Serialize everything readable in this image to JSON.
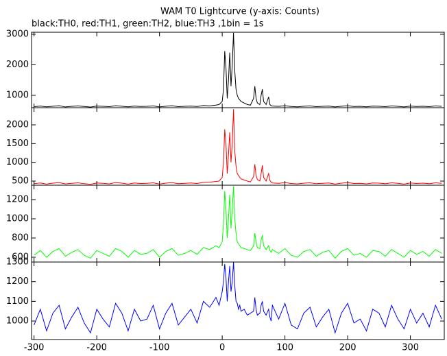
{
  "chart_data": [
    {
      "type": "line",
      "title": "WAM T0 Lightcurve (y-axis: Counts)",
      "subtitle": "black:TH0, red:TH1, green:TH2, blue:TH3 ,1bin = 1s",
      "x": [
        -300,
        -290,
        -280,
        -270,
        -260,
        -250,
        -240,
        -230,
        -220,
        -210,
        -200,
        -190,
        -180,
        -170,
        -160,
        -150,
        -140,
        -130,
        -120,
        -110,
        -100,
        -90,
        -80,
        -70,
        -60,
        -50,
        -40,
        -30,
        -20,
        -10,
        -5,
        0,
        2,
        4,
        6,
        8,
        10,
        12,
        14,
        16,
        18,
        20,
        22,
        24,
        26,
        28,
        30,
        35,
        40,
        45,
        50,
        52,
        54,
        56,
        60,
        62,
        64,
        66,
        70,
        74,
        76,
        78,
        80,
        90,
        100,
        110,
        120,
        130,
        140,
        150,
        160,
        170,
        180,
        190,
        200,
        210,
        220,
        230,
        240,
        250,
        260,
        270,
        280,
        290,
        300,
        310,
        320,
        330,
        340,
        350
      ],
      "series": [
        {
          "color": "#000000",
          "values": [
            630,
            650,
            625,
            645,
            660,
            620,
            640,
            655,
            635,
            615,
            650,
            640,
            630,
            660,
            645,
            625,
            650,
            635,
            640,
            655,
            620,
            645,
            660,
            630,
            640,
            650,
            635,
            665,
            655,
            680,
            700,
            800,
            1200,
            2450,
            1900,
            900,
            1500,
            2400,
            1300,
            2000,
            3050,
            1800,
            1200,
            1000,
            900,
            850,
            800,
            750,
            700,
            680,
            900,
            1300,
            900,
            750,
            700,
            1000,
            1200,
            800,
            700,
            950,
            700,
            660,
            650,
            640,
            660,
            635,
            625,
            645,
            655,
            630,
            640,
            650,
            620,
            645,
            660,
            635,
            640,
            625,
            650,
            645,
            630,
            655,
            640,
            620,
            650,
            635,
            645,
            630,
            655,
            640
          ]
        }
      ],
      "xlim": [
        -304,
        354
      ],
      "ylim": [
        596,
        3067
      ],
      "xticks": [
        -300,
        -200,
        -100,
        0,
        100,
        200,
        300
      ],
      "yticks": [
        1000,
        2000,
        3000
      ]
    },
    {
      "type": "line",
      "x": [
        -300,
        -290,
        -280,
        -270,
        -260,
        -250,
        -240,
        -230,
        -220,
        -210,
        -200,
        -190,
        -180,
        -170,
        -160,
        -150,
        -140,
        -130,
        -120,
        -110,
        -100,
        -90,
        -80,
        -70,
        -60,
        -50,
        -40,
        -30,
        -20,
        -10,
        -5,
        0,
        2,
        4,
        6,
        8,
        10,
        12,
        14,
        16,
        18,
        20,
        22,
        24,
        26,
        28,
        30,
        35,
        40,
        45,
        50,
        52,
        54,
        56,
        60,
        62,
        64,
        66,
        70,
        74,
        76,
        78,
        80,
        90,
        100,
        110,
        120,
        130,
        140,
        150,
        160,
        170,
        180,
        190,
        200,
        210,
        220,
        230,
        240,
        250,
        260,
        270,
        280,
        290,
        300,
        310,
        320,
        330,
        340,
        350
      ],
      "series": [
        {
          "color": "#ff0000",
          "values": [
            430,
            450,
            420,
            445,
            460,
            425,
            440,
            455,
            430,
            415,
            450,
            440,
            425,
            460,
            445,
            420,
            450,
            435,
            440,
            455,
            420,
            445,
            460,
            430,
            440,
            450,
            435,
            465,
            470,
            490,
            500,
            600,
            1000,
            1880,
            1500,
            700,
            1200,
            1800,
            1000,
            1500,
            2420,
            1300,
            900,
            700,
            650,
            600,
            560,
            530,
            500,
            480,
            620,
            950,
            650,
            540,
            500,
            700,
            920,
            600,
            500,
            700,
            520,
            470,
            450,
            440,
            460,
            435,
            425,
            445,
            455,
            430,
            440,
            450,
            420,
            445,
            460,
            435,
            440,
            425,
            450,
            445,
            430,
            455,
            440,
            420,
            450,
            435,
            445,
            430,
            455,
            440
          ]
        }
      ],
      "xlim": [
        -304,
        354
      ],
      "ylim": [
        390,
        2458
      ],
      "xticks": [
        -300,
        -200,
        -100,
        0,
        100,
        200,
        300
      ],
      "yticks": [
        500,
        1000,
        1500,
        2000
      ]
    },
    {
      "type": "line",
      "x": [
        -300,
        -290,
        -280,
        -270,
        -260,
        -250,
        -240,
        -230,
        -220,
        -210,
        -200,
        -190,
        -180,
        -170,
        -160,
        -150,
        -140,
        -130,
        -120,
        -110,
        -100,
        -90,
        -80,
        -70,
        -60,
        -50,
        -40,
        -30,
        -20,
        -10,
        -5,
        0,
        2,
        4,
        6,
        8,
        10,
        12,
        14,
        16,
        18,
        20,
        22,
        24,
        26,
        28,
        30,
        35,
        40,
        45,
        50,
        52,
        54,
        56,
        60,
        62,
        64,
        66,
        70,
        74,
        76,
        78,
        80,
        90,
        100,
        110,
        120,
        130,
        140,
        150,
        160,
        170,
        180,
        190,
        200,
        210,
        220,
        230,
        240,
        250,
        260,
        270,
        280,
        290,
        300,
        310,
        320,
        330,
        340,
        350
      ],
      "series": [
        {
          "color": "#00ff00",
          "values": [
            620,
            670,
            600,
            660,
            690,
            610,
            650,
            680,
            620,
            590,
            670,
            640,
            610,
            690,
            660,
            600,
            670,
            630,
            640,
            680,
            600,
            660,
            690,
            620,
            640,
            670,
            630,
            700,
            680,
            720,
            700,
            760,
            950,
            1290,
            1100,
            800,
            1000,
            1250,
            900,
            1100,
            1340,
            1000,
            850,
            760,
            740,
            720,
            700,
            690,
            680,
            670,
            720,
            850,
            760,
            700,
            690,
            780,
            830,
            720,
            680,
            720,
            670,
            650,
            680,
            640,
            690,
            620,
            600,
            660,
            680,
            610,
            650,
            670,
            590,
            660,
            690,
            620,
            640,
            600,
            670,
            660,
            610,
            680,
            640,
            600,
            670,
            630,
            660,
            610,
            680,
            640
          ]
        }
      ],
      "xlim": [
        -304,
        354
      ],
      "ylim": [
        550,
        1350
      ],
      "xticks": [
        -300,
        -200,
        -100,
        0,
        100,
        200,
        300
      ],
      "yticks": [
        600,
        800,
        1000,
        1200
      ]
    },
    {
      "type": "line",
      "x": [
        -300,
        -290,
        -280,
        -270,
        -260,
        -250,
        -240,
        -230,
        -220,
        -210,
        -200,
        -190,
        -180,
        -170,
        -160,
        -150,
        -140,
        -130,
        -120,
        -110,
        -100,
        -90,
        -80,
        -70,
        -60,
        -50,
        -40,
        -30,
        -20,
        -10,
        -5,
        0,
        2,
        4,
        6,
        8,
        10,
        12,
        14,
        16,
        18,
        20,
        22,
        24,
        26,
        28,
        30,
        35,
        40,
        45,
        50,
        52,
        54,
        56,
        60,
        62,
        64,
        66,
        70,
        74,
        76,
        78,
        80,
        90,
        100,
        110,
        120,
        130,
        140,
        150,
        160,
        170,
        180,
        190,
        200,
        210,
        220,
        230,
        240,
        250,
        260,
        270,
        280,
        290,
        300,
        310,
        320,
        330,
        340,
        350
      ],
      "series": [
        {
          "color": "#0000ff",
          "values": [
            980,
            1060,
            950,
            1040,
            1080,
            960,
            1020,
            1070,
            990,
            940,
            1060,
            1010,
            970,
            1090,
            1040,
            950,
            1060,
            1000,
            1010,
            1080,
            960,
            1040,
            1090,
            980,
            1020,
            1060,
            990,
            1100,
            1070,
            1120,
            1080,
            1150,
            1200,
            1290,
            1220,
            1100,
            1200,
            1280,
            1150,
            1200,
            1300,
            1180,
            1100,
            1090,
            1060,
            1080,
            1050,
            1060,
            1030,
            1040,
            1050,
            1120,
            1060,
            1030,
            1040,
            1080,
            1100,
            1050,
            1030,
            1060,
            1020,
            1000,
            1080,
            1010,
            1090,
            980,
            960,
            1040,
            1070,
            970,
            1020,
            1060,
            940,
            1040,
            1090,
            990,
            1010,
            950,
            1060,
            1040,
            970,
            1080,
            1010,
            960,
            1060,
            990,
            1040,
            970,
            1080,
            1010
          ]
        }
      ],
      "xlim": [
        -304,
        354
      ],
      "ylim": [
        906,
        1300
      ],
      "xticks": [
        -300,
        -200,
        -100,
        0,
        100,
        200,
        300
      ],
      "yticks": [
        1000,
        1100,
        1200,
        1300
      ]
    }
  ]
}
